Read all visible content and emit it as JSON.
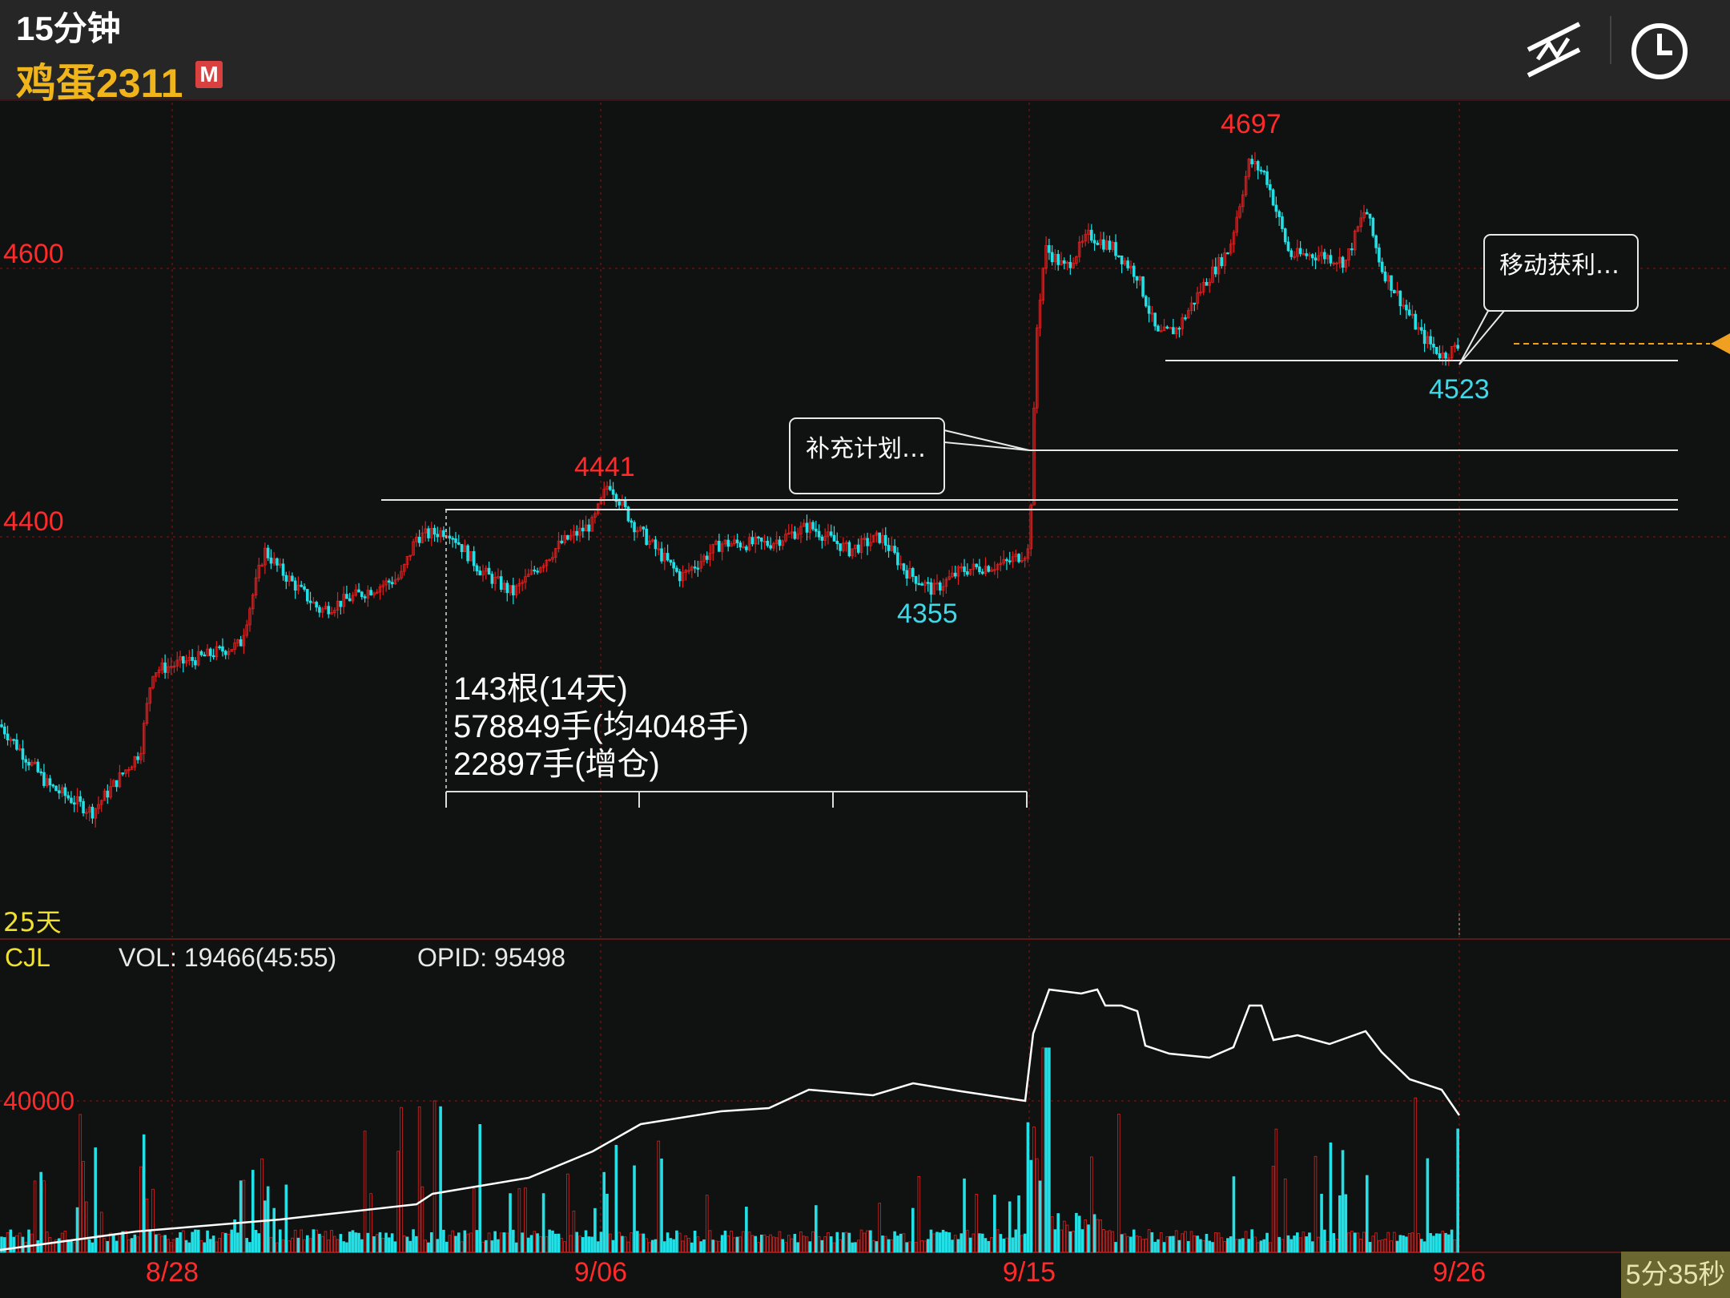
{
  "header": {
    "period": "15分钟",
    "instrument": "鸡蛋2311",
    "badge": "M",
    "icons": [
      "drawing-tool-icon",
      "clock-icon"
    ]
  },
  "colors": {
    "up": "#e02020",
    "down": "#22e0e6",
    "label_red": "#ff2a2a",
    "label_cyan": "#3fd8e8",
    "grid": "#4a1414",
    "background": "#0f1210",
    "header": "#262626",
    "last_price_marker": "#f0a020"
  },
  "price_panel": {
    "axis_labels": [
      "4600",
      "4400"
    ],
    "period_label": "25天",
    "high_label": "4697",
    "low_label": "4523",
    "local_high_label": "4441",
    "local_low_label": "4355",
    "annotation_1": "补充计划…",
    "annotation_2": "移动获利…",
    "stats_lines": [
      "143根(14天)",
      "578849手(均4048手)",
      "22897手(增仓)"
    ]
  },
  "volume_panel": {
    "indicator": "CJL",
    "vol_text": "VOL: 19466(45:55)",
    "opid_text": "OPID: 95498",
    "axis_label": "40000"
  },
  "x_labels": [
    "8/28",
    "9/06",
    "9/15",
    "9/26"
  ],
  "countdown": "5分35秒",
  "chart_data": {
    "type": "candlestick",
    "x_dates": [
      "8/28",
      "9/06",
      "9/15",
      "9/26"
    ],
    "price_key_points": [
      {
        "x": "start",
        "price": 4260
      },
      {
        "x": "8/28 early",
        "price": 4195
      },
      {
        "x": "8/28",
        "price": 4300
      },
      {
        "x": "8/31",
        "price": 4375
      },
      {
        "x": "9/04",
        "price": 4420
      },
      {
        "x": "9/06",
        "price": 4441
      },
      {
        "x": "9/13",
        "price": 4355
      },
      {
        "x": "9/15",
        "price": 4390
      },
      {
        "x": "9/15",
        "price": 4640
      },
      {
        "x": "9/19",
        "price": 4550
      },
      {
        "x": "9/21",
        "price": 4697
      },
      {
        "x": "9/25",
        "price": 4523
      },
      {
        "x": "9/26",
        "price": 4542
      }
    ],
    "horizontal_lines": [
      4529,
      4466,
      4426,
      4418
    ],
    "y_ticks": [
      4400,
      4600
    ],
    "volume_axis_tick": 40000,
    "open_interest_approx": [
      {
        "x": "8/21",
        "value": 20000
      },
      {
        "x": "8/28",
        "value": 23000
      },
      {
        "x": "9/04",
        "value": 33000
      },
      {
        "x": "9/06",
        "value": 37000
      },
      {
        "x": "9/13",
        "value": 41000
      },
      {
        "x": "9/15",
        "value": 62000
      },
      {
        "x": "9/19",
        "value": 52000
      },
      {
        "x": "9/21",
        "value": 55000
      },
      {
        "x": "9/26",
        "value": 39000
      }
    ]
  }
}
